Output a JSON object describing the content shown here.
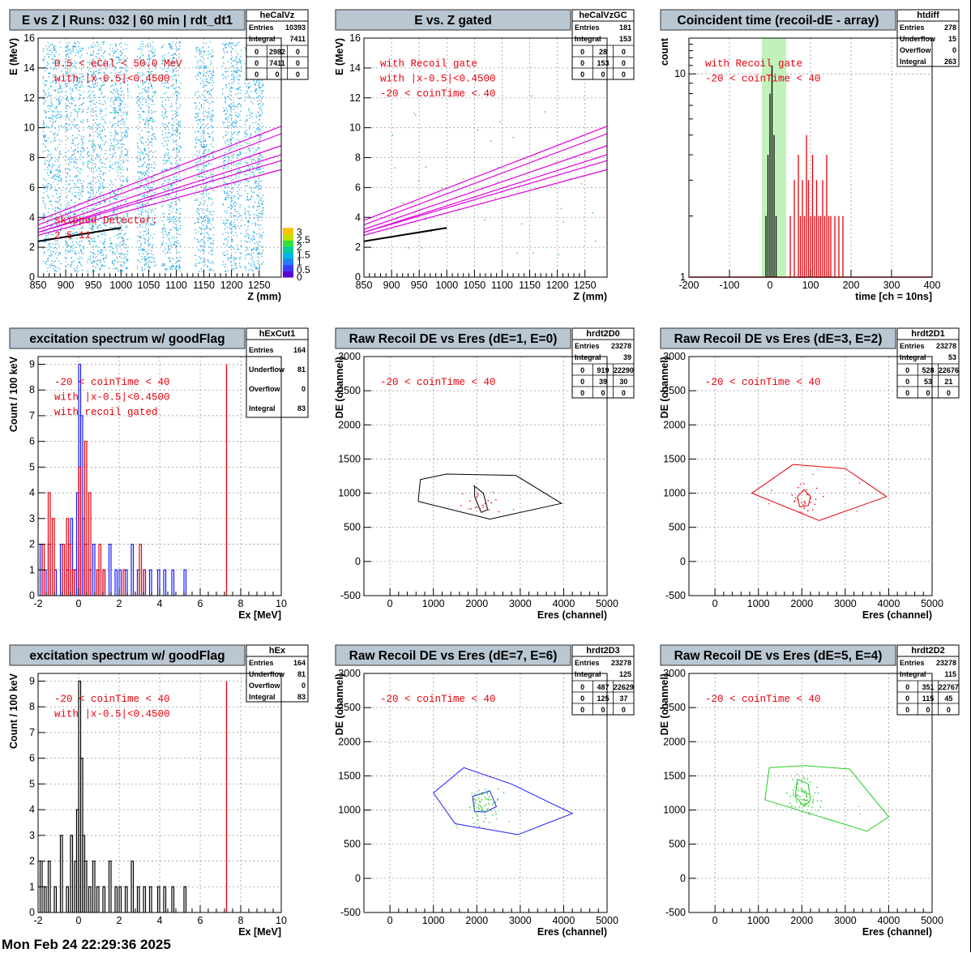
{
  "footer": "Mon Feb 24 22:29:36 2025",
  "colors": {
    "red": "#e8000b",
    "black": "#000000",
    "blue": "#1a1aff",
    "green": "#22cc22",
    "magenta": "#e000e0",
    "gateGreen": "#b6f0b0",
    "titleBox": "#b9c7d3",
    "cyan": "#00b4e8"
  },
  "panels": [
    {
      "title": "E vs Z | Runs: 032 | 60 min | rdt_dt1",
      "stats": {
        "name": "heCalVz",
        "rows": [
          [
            "Entries",
            "10393"
          ],
          [
            "Integral",
            "7411"
          ]
        ],
        "grid": [
          [
            "0",
            "2982",
            "0"
          ],
          [
            "0",
            "7411",
            "0"
          ],
          [
            "0",
            "0",
            "0"
          ]
        ]
      },
      "xlabel": "Z (mm)",
      "ylabel": "E (MeV)",
      "xlim": [
        850,
        1290
      ],
      "ylim": [
        0,
        16
      ],
      "xticks": [
        850,
        900,
        950,
        1000,
        1050,
        1100,
        1150,
        1200,
        1250
      ],
      "yticks": [
        0,
        2,
        4,
        6,
        8,
        10,
        12,
        14,
        16
      ],
      "labels": [
        "0.5 < eCal < 50.0 MeV",
        "with |x-0.5|<0.4500",
        "skipped Detector:",
        "2    5    11"
      ],
      "palette": {
        "ticks": [
          0,
          0.5,
          1,
          1.5,
          2,
          2.5,
          3
        ],
        "top": "5"
      }
    },
    {
      "title": "E vs. Z gated",
      "stats": {
        "name": "heCalVzGC",
        "rows": [
          [
            "Entries",
            "181"
          ],
          [
            "Integral",
            "153"
          ]
        ],
        "grid": [
          [
            "0",
            "28",
            "0"
          ],
          [
            "0",
            "153",
            "0"
          ],
          [
            "0",
            "0",
            "0"
          ]
        ]
      },
      "xlabel": "Z (mm)",
      "ylabel": "E (MeV)",
      "xlim": [
        850,
        1290
      ],
      "ylim": [
        0,
        16
      ],
      "xticks": [
        850,
        900,
        950,
        1000,
        1050,
        1100,
        1150,
        1200,
        1250
      ],
      "yticks": [
        0,
        2,
        4,
        6,
        8,
        10,
        12,
        14,
        16
      ],
      "labels": [
        "with Recoil gate",
        "with |x-0.5|<0.4500",
        "-20 < coinTime < 40"
      ]
    },
    {
      "title": "Coincident time (recoil-dE - array)",
      "stats": {
        "name": "htdiff",
        "rows": [
          [
            "Entries",
            "278"
          ],
          [
            "Underflow",
            "15"
          ],
          [
            "Overflow",
            "0"
          ],
          [
            "Integral",
            "263"
          ]
        ]
      },
      "xlabel": "time [ch = 10ns]",
      "ylabel": "count",
      "xlim": [
        -200,
        400
      ],
      "ylim": [
        1,
        15
      ],
      "xticks": [
        -200,
        -100,
        0,
        100,
        200,
        300,
        400
      ],
      "yticks": [
        1,
        10
      ],
      "gate": [
        -20,
        40
      ],
      "labels": [
        "with Recoil gate",
        "-20 < coinTime < 40"
      ]
    },
    {
      "title": "excitation spectrum w/ goodFlag",
      "stats": {
        "name": "hExCut1",
        "rows": [
          [
            "Entries",
            "164"
          ],
          [
            "Underflow",
            "81"
          ],
          [
            "Overflow",
            "0"
          ],
          [
            "Integral",
            "83"
          ]
        ]
      },
      "xlabel": "Ex [MeV]",
      "ylabel": "Count / 100 keV",
      "xlim": [
        -2,
        10
      ],
      "ylim": [
        0,
        9.3
      ],
      "xticks": [
        -2,
        0,
        2,
        4,
        6,
        8,
        10
      ],
      "yticks": [
        0,
        1,
        2,
        3,
        4,
        5,
        6,
        7,
        8,
        9
      ],
      "vline": 7.3,
      "labels": [
        "-20 < coinTime < 40",
        "with |x-0.5|<0.4500",
        "with recoil gated"
      ]
    },
    {
      "title": "Raw Recoil DE vs Eres (dE=1, E=0)",
      "stats": {
        "name": "hrdt2D0",
        "rows": [
          [
            "Entries",
            "23278"
          ],
          [
            "Integral",
            "39"
          ]
        ],
        "grid": [
          [
            "0",
            "919",
            "22290"
          ],
          [
            "0",
            "39",
            "30"
          ],
          [
            "0",
            "0",
            "0"
          ]
        ]
      },
      "xlabel": "Eres (channel)",
      "ylabel": "DE (channel)",
      "xlim": [
        -600,
        5000
      ],
      "ylim": [
        -500,
        3000
      ],
      "xticks": [
        0,
        1000,
        2000,
        3000,
        4000,
        5000
      ],
      "yticks": [
        -500,
        0,
        500,
        1000,
        1500,
        2000,
        2500,
        3000
      ],
      "labels": [
        "-20 < coinTime < 40"
      ],
      "polyColor": "black",
      "dotColor": "red",
      "innerColor": "black"
    },
    {
      "title": "Raw Recoil DE vs Eres (dE=3, E=2)",
      "stats": {
        "name": "hrdt2D1",
        "rows": [
          [
            "Entries",
            "23278"
          ],
          [
            "Integral",
            "53"
          ]
        ],
        "grid": [
          [
            "0",
            "528",
            "22676"
          ],
          [
            "0",
            "53",
            "21"
          ],
          [
            "0",
            "0",
            "0"
          ]
        ]
      },
      "xlabel": "Eres (channel)",
      "ylabel": "DE (channel)",
      "xlim": [
        -600,
        5000
      ],
      "ylim": [
        -500,
        3000
      ],
      "xticks": [
        0,
        1000,
        2000,
        3000,
        4000,
        5000
      ],
      "yticks": [
        -500,
        0,
        500,
        1000,
        1500,
        2000,
        2500,
        3000
      ],
      "labels": [
        "-20 < coinTime < 40"
      ],
      "polyColor": "red",
      "dotColor": "red",
      "innerColor": "red"
    },
    {
      "title": "excitation spectrum w/ goodFlag",
      "stats": {
        "name": "hEx",
        "rows": [
          [
            "Entries",
            "164"
          ],
          [
            "Underflow",
            "81"
          ],
          [
            "Overflow",
            "0"
          ],
          [
            "Integral",
            "83"
          ]
        ]
      },
      "xlabel": "Ex [MeV]",
      "ylabel": "Count / 100 keV",
      "xlim": [
        -2,
        10
      ],
      "ylim": [
        0,
        9.3
      ],
      "xticks": [
        -2,
        0,
        2,
        4,
        6,
        8,
        10
      ],
      "yticks": [
        0,
        1,
        2,
        3,
        4,
        5,
        6,
        7,
        8,
        9
      ],
      "vline": 7.3,
      "labels": [
        "-20 < coinTime < 40",
        "with |x-0.5|<0.4500"
      ]
    },
    {
      "title": "Raw Recoil DE vs Eres (dE=7, E=6)",
      "stats": {
        "name": "hrdt2D3",
        "rows": [
          [
            "Entries",
            "23278"
          ],
          [
            "Integral",
            "125"
          ]
        ],
        "grid": [
          [
            "0",
            "487",
            "22629"
          ],
          [
            "0",
            "125",
            "37"
          ],
          [
            "0",
            "0",
            "0"
          ]
        ]
      },
      "xlabel": "Eres (channel)",
      "ylabel": "DE (channel)",
      "xlim": [
        -600,
        5000
      ],
      "ylim": [
        -500,
        3000
      ],
      "xticks": [
        0,
        1000,
        2000,
        3000,
        4000,
        5000
      ],
      "yticks": [
        -500,
        0,
        500,
        1000,
        1500,
        2000,
        2500,
        3000
      ],
      "labels": [
        "-20 < coinTime < 40"
      ],
      "polyColor": "blue",
      "dotColor": "green",
      "innerColor": "blue"
    },
    {
      "title": "Raw Recoil DE vs Eres (dE=5, E=4)",
      "stats": {
        "name": "hrdt2D2",
        "rows": [
          [
            "Entries",
            "23278"
          ],
          [
            "Integral",
            "115"
          ]
        ],
        "grid": [
          [
            "0",
            "351",
            "22767"
          ],
          [
            "0",
            "115",
            "45"
          ],
          [
            "0",
            "0",
            "0"
          ]
        ]
      },
      "xlabel": "Eres (channel)",
      "ylabel": "DE (channel)",
      "xlim": [
        -600,
        5000
      ],
      "ylim": [
        -500,
        3000
      ],
      "xticks": [
        0,
        1000,
        2000,
        3000,
        4000,
        5000
      ],
      "yticks": [
        -500,
        0,
        500,
        1000,
        1500,
        2000,
        2500,
        3000
      ],
      "labels": [
        "-20 < coinTime < 40"
      ],
      "polyColor": "green",
      "dotColor": "green",
      "innerColor": "green"
    }
  ],
  "chart_data": [
    {
      "type": "heatmap",
      "name": "heCalVz",
      "title": "E vs Z | Runs: 032 | 60 min | rdt_dt1",
      "xlabel": "Z (mm)",
      "ylabel": "E (MeV)",
      "xlim": [
        850,
        1290
      ],
      "ylim": [
        0,
        16
      ],
      "zlim": [
        0,
        3.3
      ],
      "kinematic_lines": {
        "z": [
          850,
          1290
        ],
        "curves": [
          [
            3.5,
            9.6
          ],
          [
            3.2,
            8.8
          ],
          [
            3.0,
            8.2
          ],
          [
            3.8,
            10.1
          ],
          [
            3.0,
            7.8
          ],
          [
            2.8,
            7.2
          ]
        ]
      },
      "detector_columns_z": [
        875,
        915,
        955,
        995,
        1045,
        1090,
        1150,
        1200,
        1240
      ]
    },
    {
      "type": "scatter",
      "name": "heCalVzGC",
      "title": "E vs. Z gated",
      "xlabel": "Z (mm)",
      "ylabel": "E (MeV)",
      "xlim": [
        850,
        1290
      ],
      "ylim": [
        0,
        16
      ]
    },
    {
      "type": "bar",
      "name": "htdiff",
      "title": "Coincident time (recoil-dE - array)",
      "xlabel": "time [ch = 10ns]",
      "ylabel": "count",
      "log_y": true,
      "xlim": [
        -200,
        400
      ],
      "ylim": [
        1,
        15
      ],
      "series": [
        {
          "color": "black",
          "x": [
            -10,
            -5,
            0,
            5,
            10,
            15
          ],
          "values": [
            2,
            4,
            8,
            11,
            5,
            2
          ]
        },
        {
          "color": "red",
          "x": [
            -160,
            50,
            60,
            70,
            75,
            80,
            85,
            90,
            95,
            100,
            105,
            110,
            115,
            120,
            125,
            130,
            135,
            140,
            145,
            150,
            160,
            170,
            180,
            200,
            220,
            250
          ],
          "values": [
            1,
            2,
            3,
            4,
            2,
            3,
            2,
            5,
            3,
            2,
            4,
            2,
            3,
            2,
            2,
            3,
            2,
            4,
            2,
            2,
            2,
            2,
            2,
            1,
            1,
            1
          ]
        }
      ]
    },
    {
      "type": "bar",
      "name": "hExCut1",
      "title": "excitation spectrum w/ goodFlag",
      "xlabel": "Ex [MeV]",
      "ylabel": "Count / 100 keV",
      "xlim": [
        -2,
        10
      ],
      "ylim": [
        0,
        9.3
      ],
      "series": [
        {
          "color": "blue",
          "x": [
            -1.9,
            -1.7,
            -1.5,
            -1.2,
            -0.9,
            -0.6,
            -0.4,
            -0.2,
            -0.1,
            0.0,
            0.1,
            0.2,
            0.3,
            0.5,
            0.7,
            0.9,
            1.2,
            1.5,
            1.8,
            2.0,
            2.3,
            2.6,
            2.9,
            3.2,
            3.5,
            3.9,
            4.2,
            4.6,
            5.2
          ],
          "values": [
            2,
            1,
            2,
            1,
            2,
            1,
            3,
            1,
            4,
            9,
            7,
            3,
            2,
            1,
            2,
            1,
            1,
            2,
            1,
            1,
            1,
            2,
            1,
            1,
            1,
            1,
            1,
            1,
            1
          ]
        },
        {
          "color": "red",
          "x": [
            -1.8,
            -1.5,
            -1.3,
            -0.8,
            -0.6,
            -0.5,
            -0.3,
            0.0,
            0.3,
            0.5,
            0.9,
            1.0,
            1.2,
            2.2,
            3.0,
            3.2
          ],
          "values": [
            2,
            4,
            3,
            2,
            3,
            2,
            1,
            5,
            6,
            4,
            1,
            2,
            1,
            1,
            2,
            1
          ]
        }
      ]
    },
    {
      "type": "scatter",
      "name": "hrdt2D0",
      "title": "Raw Recoil DE vs Eres (dE=1, E=0)",
      "xlabel": "Eres (channel)",
      "ylabel": "DE (channel)",
      "xlim": [
        -600,
        5000
      ],
      "ylim": [
        -500,
        3000
      ],
      "outer_gate": [
        [
          700,
          1200
        ],
        [
          1300,
          1280
        ],
        [
          2900,
          1260
        ],
        [
          3950,
          850
        ],
        [
          2300,
          620
        ],
        [
          650,
          880
        ]
      ],
      "inner_gate": [
        [
          1950,
          1100
        ],
        [
          2150,
          1000
        ],
        [
          2250,
          760
        ],
        [
          2100,
          720
        ],
        [
          1950,
          950
        ]
      ]
    },
    {
      "type": "scatter",
      "name": "hrdt2D1",
      "title": "Raw Recoil DE vs Eres (dE=3, E=2)",
      "xlabel": "Eres (channel)",
      "ylabel": "DE (channel)",
      "xlim": [
        -600,
        5000
      ],
      "ylim": [
        -500,
        3000
      ],
      "outer_gate": [
        [
          850,
          1000
        ],
        [
          1800,
          1420
        ],
        [
          3000,
          1360
        ],
        [
          3950,
          950
        ],
        [
          2400,
          600
        ]
      ],
      "inner_gate": [
        [
          2050,
          1050
        ],
        [
          2200,
          950
        ],
        [
          2150,
          820
        ],
        [
          1950,
          800
        ],
        [
          1900,
          950
        ]
      ]
    },
    {
      "type": "bar",
      "name": "hEx",
      "title": "excitation spectrum w/ goodFlag",
      "xlabel": "Ex [MeV]",
      "ylabel": "Count / 100 keV",
      "xlim": [
        -2,
        10
      ],
      "ylim": [
        0,
        9.3
      ],
      "series": [
        {
          "color": "black",
          "x": [
            -1.9,
            -1.7,
            -1.5,
            -1.2,
            -0.9,
            -0.6,
            -0.4,
            -0.2,
            -0.1,
            0.0,
            0.1,
            0.2,
            0.3,
            0.5,
            0.7,
            0.9,
            1.2,
            1.5,
            1.8,
            2.0,
            2.3,
            2.6,
            2.9,
            3.2,
            3.5,
            3.9,
            4.2,
            4.6,
            5.2
          ],
          "values": [
            2,
            1,
            2,
            1,
            3,
            1,
            3,
            2,
            4,
            9,
            6,
            3,
            2,
            1,
            2,
            1,
            1,
            2,
            1,
            1,
            1,
            2,
            1,
            1,
            1,
            1,
            1,
            1,
            1
          ]
        }
      ]
    },
    {
      "type": "scatter",
      "name": "hrdt2D3",
      "title": "Raw Recoil DE vs Eres (dE=7, E=6)",
      "xlabel": "Eres (channel)",
      "ylabel": "DE (channel)",
      "xlim": [
        -600,
        5000
      ],
      "ylim": [
        -500,
        3000
      ],
      "outer_gate": [
        [
          1000,
          1250
        ],
        [
          1700,
          1620
        ],
        [
          2800,
          1380
        ],
        [
          4200,
          950
        ],
        [
          2950,
          640
        ],
        [
          1500,
          800
        ]
      ],
      "inner_gate": [
        [
          1900,
          1200
        ],
        [
          2300,
          1280
        ],
        [
          2450,
          1050
        ],
        [
          2200,
          970
        ],
        [
          1950,
          980
        ]
      ]
    },
    {
      "type": "scatter",
      "name": "hrdt2D2",
      "title": "Raw Recoil DE vs Eres (dE=5, E=4)",
      "xlabel": "Eres (channel)",
      "ylabel": "DE (channel)",
      "xlim": [
        -600,
        5000
      ],
      "ylim": [
        -500,
        3000
      ],
      "outer_gate": [
        [
          1250,
          1620
        ],
        [
          2050,
          1650
        ],
        [
          3100,
          1600
        ],
        [
          4000,
          900
        ],
        [
          3500,
          690
        ],
        [
          1150,
          1150
        ]
      ],
      "inner_gate": [
        [
          1900,
          1450
        ],
        [
          2150,
          1380
        ],
        [
          2200,
          1150
        ],
        [
          2050,
          1050
        ],
        [
          1850,
          1200
        ]
      ]
    }
  ]
}
